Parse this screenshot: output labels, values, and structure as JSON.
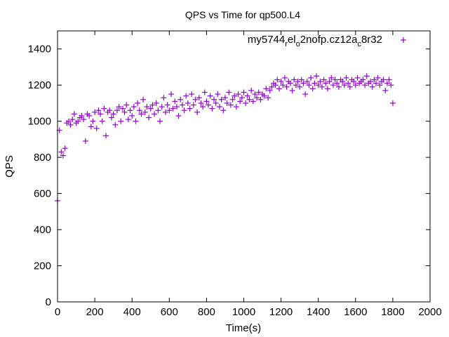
{
  "chart_data": {
    "type": "scatter",
    "title": "QPS vs Time for qp500.L4",
    "xlabel": "Time(s)",
    "ylabel": "QPS",
    "xlim": [
      0,
      2000
    ],
    "ylim": [
      0,
      1500
    ],
    "xticks": [
      0,
      200,
      400,
      600,
      800,
      1000,
      1200,
      1400,
      1600,
      1800,
      2000
    ],
    "yticks": [
      0,
      200,
      400,
      600,
      800,
      1000,
      1200,
      1400
    ],
    "grid": false,
    "legend_position": "top-right",
    "series": [
      {
        "name": "my5744_rel_o2nofp.cz12a_c8r32",
        "color": "#9400d3",
        "marker": "plus",
        "x_start": 0,
        "x_step": 10,
        "values": [
          560,
          950,
          830,
          810,
          850,
          990,
          1000,
          980,
          1010,
          1040,
          990,
          1000,
          1020,
          1030,
          1010,
          890,
          1040,
          1030,
          970,
          1000,
          1050,
          960,
          1060,
          1040,
          1000,
          1070,
          920,
          1050,
          1060,
          1020,
          1040,
          980,
          1060,
          1080,
          1000,
          1070,
          1050,
          1090,
          1010,
          1060,
          1030,
          1080,
          1000,
          1100,
          1060,
          1040,
          1120,
          1050,
          1080,
          1020,
          1070,
          1090,
          1040,
          1100,
          1060,
          1000,
          1080,
          1130,
          1050,
          1090,
          1060,
          1150,
          1070,
          1110,
          1080,
          1030,
          1120,
          1090,
          1060,
          1140,
          1100,
          1070,
          1150,
          1090,
          1120,
          1050,
          1130,
          1100,
          1080,
          1160,
          1110,
          1090,
          1140,
          1070,
          1120,
          1100,
          1150,
          1080,
          1120,
          1060,
          1130,
          1100,
          1160,
          1090,
          1120,
          1140,
          1080,
          1150,
          1110,
          1130,
          1160,
          1100,
          1140,
          1120,
          1170,
          1110,
          1150,
          1130,
          1160,
          1120,
          1150,
          1140,
          1180,
          1130,
          1170,
          1190,
          1210,
          1200,
          1230,
          1180,
          1220,
          1200,
          1240,
          1190,
          1220,
          1210,
          1170,
          1230,
          1200,
          1220,
          1190,
          1230,
          1210,
          1150,
          1220,
          1200,
          1240,
          1180,
          1210,
          1250,
          1200,
          1220,
          1190,
          1230,
          1210,
          1180,
          1220,
          1240,
          1200,
          1230,
          1210,
          1190,
          1230,
          1220,
          1200,
          1240,
          1210,
          1190,
          1230,
          1220,
          1200,
          1240,
          1210,
          1220,
          1230,
          1200,
          1250,
          1210,
          1220,
          1190,
          1230,
          1210,
          1240,
          1200,
          1220,
          1230,
          1170,
          1210,
          1230,
          1200,
          1100
        ]
      }
    ]
  }
}
